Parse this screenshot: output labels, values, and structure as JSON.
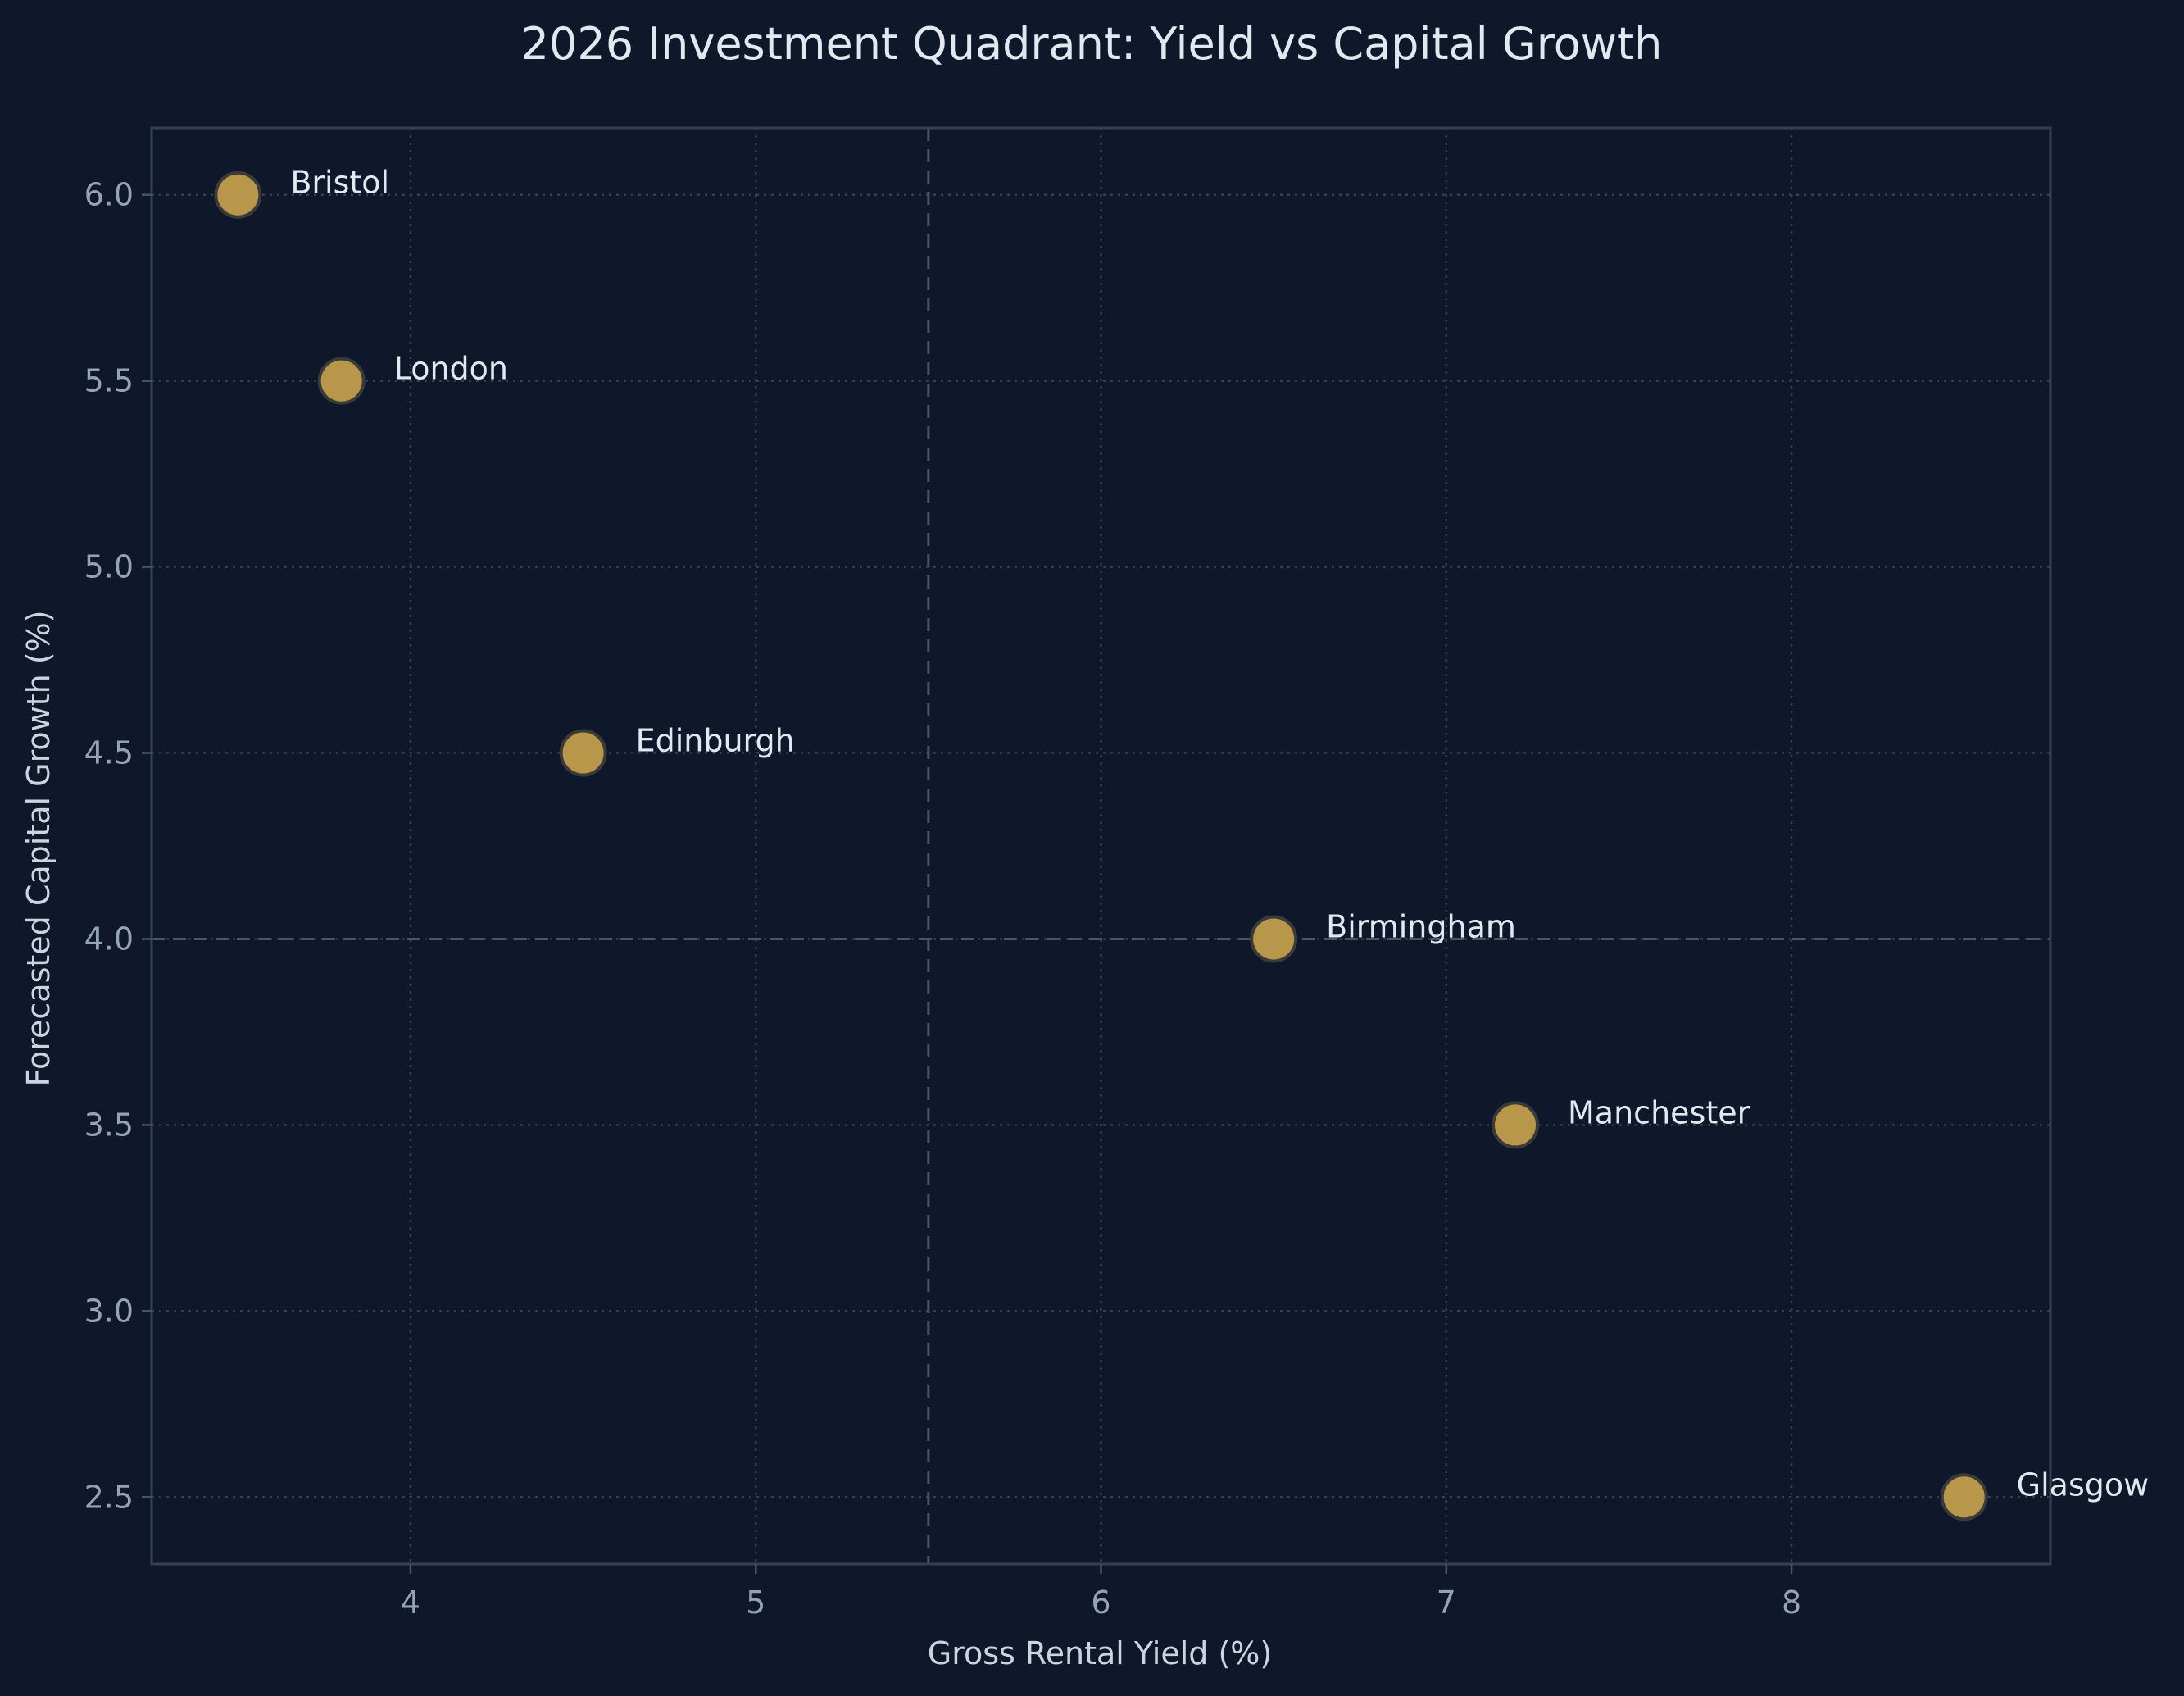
{
  "chart_data": {
    "type": "scatter",
    "title": "2026 Investment Quadrant: Yield vs Capital Growth",
    "xlabel": "Gross Rental Yield (%)",
    "ylabel": "Forecasted Capital Growth (%)",
    "xlim": [
      3.25,
      8.75
    ],
    "ylim": [
      2.32,
      6.18
    ],
    "x_ticks": [
      4,
      5,
      6,
      7,
      8
    ],
    "x_tick_labels": [
      "4",
      "5",
      "6",
      "7",
      "8"
    ],
    "y_ticks": [
      2.5,
      3.0,
      3.5,
      4.0,
      4.5,
      5.0,
      5.5,
      6.0
    ],
    "y_tick_labels": [
      "2.5",
      "3.0",
      "3.5",
      "4.0",
      "4.5",
      "5.0",
      "5.5",
      "6.0"
    ],
    "grid": true,
    "reference_lines": {
      "x": 5.5,
      "y": 4.0
    },
    "point_color": "#b8964a",
    "background_color": "#0f172a",
    "points": [
      {
        "label": "Bristol",
        "x": 3.5,
        "y": 6.0
      },
      {
        "label": "London",
        "x": 3.8,
        "y": 5.5
      },
      {
        "label": "Edinburgh",
        "x": 4.5,
        "y": 4.5
      },
      {
        "label": "Birmingham",
        "x": 6.5,
        "y": 4.0
      },
      {
        "label": "Manchester",
        "x": 7.2,
        "y": 3.5
      },
      {
        "label": "Glasgow",
        "x": 8.5,
        "y": 2.5
      }
    ]
  }
}
